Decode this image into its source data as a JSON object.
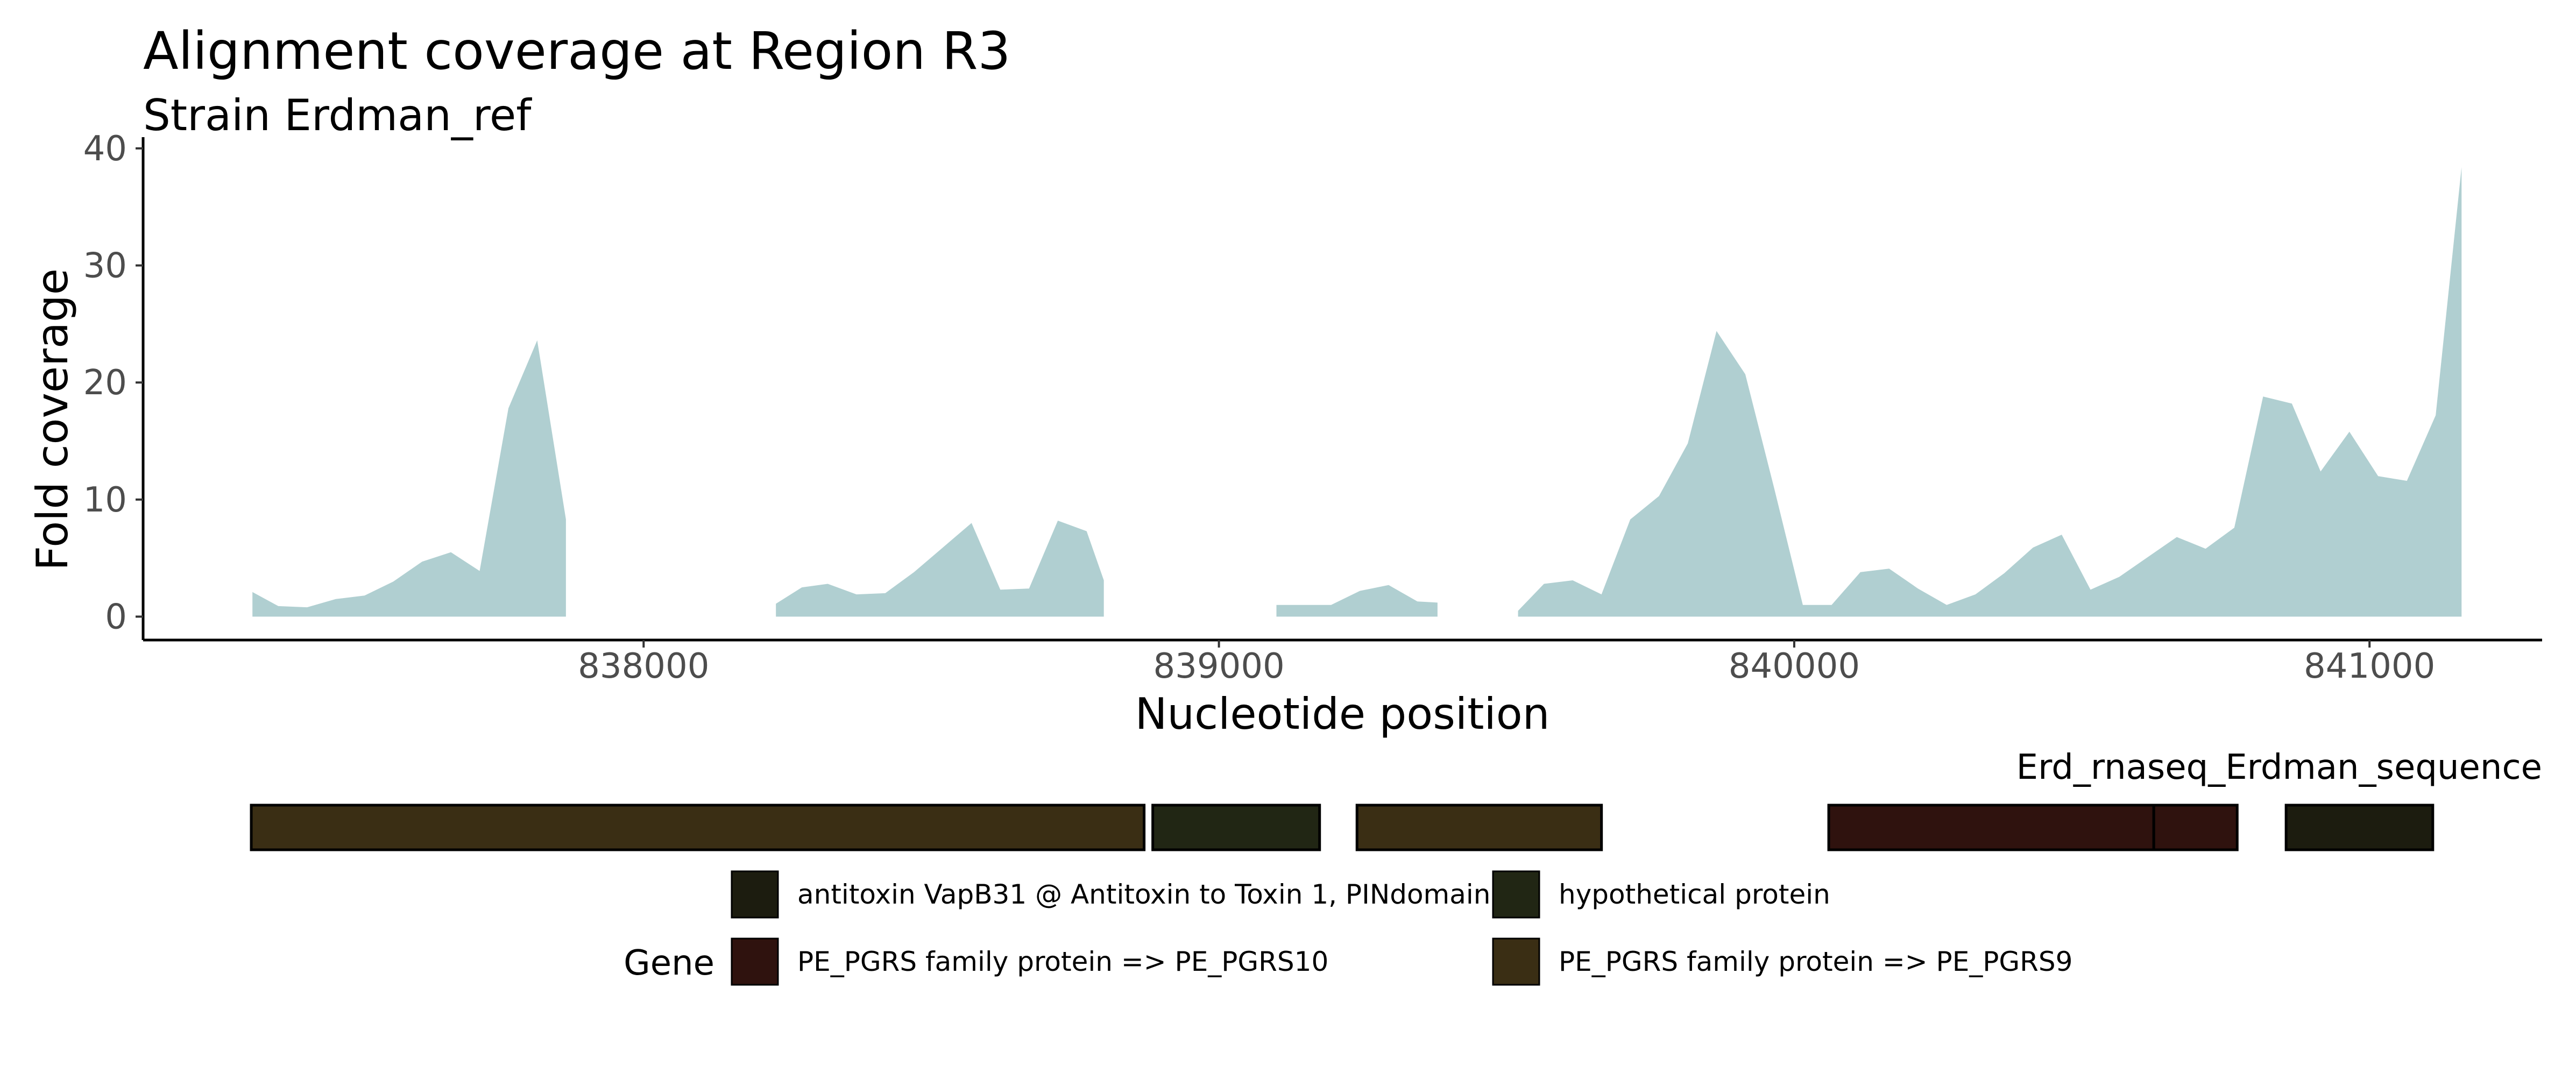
{
  "chart_data": {
    "type": "area",
    "title": "Alignment coverage at Region R3",
    "subtitle": "Strain Erdman_ref",
    "xlabel": "Nucleotide position",
    "ylabel": "Fold coverage",
    "xlim": [
      837130,
      841300
    ],
    "ylim": [
      -2,
      40.5
    ],
    "xticks": [
      838000,
      839000,
      840000,
      841000
    ],
    "yticks": [
      0,
      10,
      20,
      30,
      40
    ],
    "fill_color": "#b0cfd1",
    "grid": false,
    "segments": [
      [
        [
          837320,
          2.1
        ],
        [
          837365,
          0.9
        ],
        [
          837415,
          0.8
        ],
        [
          837465,
          1.5
        ],
        [
          837515,
          1.8
        ],
        [
          837565,
          3.0
        ],
        [
          837615,
          4.7
        ],
        [
          837665,
          5.5
        ],
        [
          837715,
          3.9
        ],
        [
          837765,
          17.8
        ],
        [
          837815,
          23.6
        ],
        [
          837865,
          8.3
        ]
      ],
      [
        [
          838230,
          1.1
        ],
        [
          838275,
          2.5
        ],
        [
          838320,
          2.8
        ],
        [
          838370,
          1.9
        ],
        [
          838420,
          2.0
        ],
        [
          838470,
          3.8
        ],
        [
          838520,
          5.9
        ],
        [
          838570,
          8.0
        ],
        [
          838620,
          2.3
        ],
        [
          838670,
          2.4
        ],
        [
          838720,
          8.2
        ],
        [
          838770,
          7.3
        ],
        [
          838800,
          3.1
        ]
      ],
      [
        [
          839100,
          1.0
        ],
        [
          839145,
          1.0
        ],
        [
          839195,
          1.0
        ],
        [
          839245,
          2.2
        ],
        [
          839295,
          2.7
        ],
        [
          839345,
          1.3
        ],
        [
          839380,
          1.2
        ]
      ],
      [
        [
          839520,
          0.5
        ],
        [
          839565,
          2.8
        ],
        [
          839615,
          3.1
        ],
        [
          839665,
          1.9
        ],
        [
          839715,
          8.3
        ],
        [
          839765,
          10.3
        ],
        [
          839815,
          14.8
        ],
        [
          839865,
          24.4
        ],
        [
          839915,
          20.7
        ],
        [
          839965,
          11.0
        ],
        [
          840015,
          1.0
        ],
        [
          840065,
          1.0
        ],
        [
          840115,
          3.8
        ],
        [
          840165,
          4.1
        ],
        [
          840215,
          2.4
        ],
        [
          840265,
          1.0
        ],
        [
          840315,
          1.9
        ],
        [
          840365,
          3.7
        ],
        [
          840415,
          5.9
        ],
        [
          840465,
          7.0
        ],
        [
          840515,
          2.3
        ],
        [
          840565,
          3.4
        ],
        [
          840615,
          5.1
        ],
        [
          840665,
          6.8
        ],
        [
          840715,
          5.8
        ],
        [
          840765,
          7.6
        ],
        [
          840815,
          18.8
        ],
        [
          840865,
          18.2
        ],
        [
          840915,
          12.4
        ],
        [
          840965,
          15.8
        ],
        [
          841015,
          12.0
        ],
        [
          841065,
          11.6
        ],
        [
          841115,
          17.2
        ],
        [
          841160,
          38.4
        ]
      ]
    ],
    "gene_track": {
      "label": "Erd_rnaseq_Erdman_sequence",
      "genes": [
        {
          "start": 837318,
          "end": 838870,
          "product": "PE_PGRS family protein => PE_PGRS9"
        },
        {
          "start": 838885,
          "end": 839175,
          "product": "hypothetical protein"
        },
        {
          "start": 839240,
          "end": 839665,
          "product": "PE_PGRS family protein => PE_PGRS9"
        },
        {
          "start": 840060,
          "end": 840625,
          "product": "PE_PGRS family protein => PE_PGRS10"
        },
        {
          "start": 840625,
          "end": 840770,
          "product": "PE_PGRS family protein => PE_PGRS10"
        },
        {
          "start": 840855,
          "end": 841110,
          "product": "antitoxin VapB31 @ Antitoxin to Toxin 1, PINdomain"
        }
      ]
    },
    "legend": {
      "title": "Gene",
      "placement": "bottom",
      "entries": [
        {
          "label": "antitoxin VapB31 @ Antitoxin to Toxin 1, PINdomain",
          "color": "#1c1c0f"
        },
        {
          "label": "hypothetical protein",
          "color": "#212614"
        },
        {
          "label": "PE_PGRS family protein => PE_PGRS10",
          "color": "#2f120e"
        },
        {
          "label": "PE_PGRS family protein => PE_PGRS9",
          "color": "#3a2e14"
        }
      ]
    }
  }
}
